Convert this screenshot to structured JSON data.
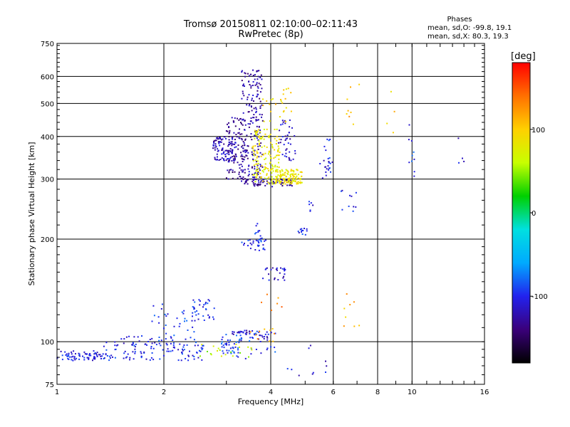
{
  "header": {
    "title_line1": "Tromsø 20150811 02:10:00–02:11:43",
    "title_line2": "RwPretec (8p)"
  },
  "phase_info": {
    "heading": "Phases",
    "line_o": "mean, sd,O: -99.8, 19.1",
    "line_x": "mean, sd,X: 80.3, 19.3"
  },
  "colors": {
    "colormap": [
      "#000000",
      "#3a007a",
      "#2222ee",
      "#00aaff",
      "#00e0e0",
      "#00d000",
      "#c8ff00",
      "#ffd000",
      "#ff7000",
      "#ff0000"
    ]
  },
  "chart_data": {
    "type": "scatter",
    "title": "Tromsø 20150811 02:10:00–02:11:43",
    "subtitle": "RwPretec (8p)",
    "xlabel": "Frequency [MHz]",
    "ylabel": "Stationary phase Virtual Height [km]",
    "x_scale": "log",
    "y_scale": "log",
    "xlim": [
      1,
      16
    ],
    "ylim": [
      75,
      750
    ],
    "x_ticks": [
      1,
      2,
      4,
      6,
      8,
      10,
      16
    ],
    "x_tick_labels": [
      "1",
      "2",
      "4",
      "6",
      "8",
      "10",
      "16"
    ],
    "y_ticks": [
      75,
      100,
      200,
      300,
      400,
      500,
      600,
      750
    ],
    "y_tick_labels": [
      "75",
      "100",
      "200",
      "300",
      "400",
      "500",
      "600",
      "750"
    ],
    "grid": true,
    "colorbar": {
      "label": "[deg]",
      "range": [
        -180,
        180
      ],
      "ticks": [
        100,
        0,
        -100
      ],
      "tick_labels": [
        "100",
        "0",
        "-100"
      ]
    },
    "series": [
      {
        "name": "O",
        "clusters": [
          {
            "f": [
              1.0,
              1.35
            ],
            "h": [
              88,
              94
            ],
            "phase": -105,
            "n": 70
          },
          {
            "f": [
              1.35,
              2.6
            ],
            "h": [
              88,
              100
            ],
            "phase": -100,
            "n": 110
          },
          {
            "f": [
              1.45,
              2.1
            ],
            "h": [
              98,
              104
            ],
            "phase": -110,
            "n": 20
          },
          {
            "f": [
              1.8,
              2.5
            ],
            "h": [
              100,
              130
            ],
            "phase": -95,
            "n": 40
          },
          {
            "f": [
              2.4,
              2.8
            ],
            "h": [
              115,
              135
            ],
            "phase": -95,
            "n": 30
          },
          {
            "f": [
              2.9,
              3.3
            ],
            "h": [
              90,
              105
            ],
            "phase": -90,
            "n": 35
          },
          {
            "f": [
              3.1,
              3.5
            ],
            "h": [
              105,
              108
            ],
            "phase": -115,
            "n": 20
          },
          {
            "f": [
              3.45,
              3.95
            ],
            "h": [
              100,
              108
            ],
            "phase": -110,
            "n": 20
          },
          {
            "f": [
              3.0,
              4.2
            ],
            "h": [
              88,
              108
            ],
            "phase": -95,
            "n": 30
          },
          {
            "f": [
              2.75,
              3.2
            ],
            "h": [
              340,
              400
            ],
            "phase": -120,
            "n": 110
          },
          {
            "f": [
              3.0,
              3.4
            ],
            "h": [
              300,
              460
            ],
            "phase": -130,
            "n": 90
          },
          {
            "f": [
              3.3,
              3.8
            ],
            "h": [
              300,
              630
            ],
            "phase": -125,
            "n": 200
          },
          {
            "f": [
              3.3,
              4.6
            ],
            "h": [
              285,
              300
            ],
            "phase": -130,
            "n": 80
          },
          {
            "f": [
              3.3,
              3.9
            ],
            "h": [
              185,
              200
            ],
            "phase": -100,
            "n": 30
          },
          {
            "f": [
              3.6,
              3.85
            ],
            "h": [
              200,
              225
            ],
            "phase": -100,
            "n": 10
          },
          {
            "f": [
              3.8,
              4.4
            ],
            "h": [
              150,
              165
            ],
            "phase": -110,
            "n": 25
          },
          {
            "f": [
              4.2,
              4.7
            ],
            "h": [
              340,
              450
            ],
            "phase": -115,
            "n": 40
          },
          {
            "f": [
              4.75,
              5.1
            ],
            "h": [
              205,
              215
            ],
            "phase": -100,
            "n": 12
          },
          {
            "f": [
              5.1,
              5.3
            ],
            "h": [
              240,
              260
            ],
            "phase": -105,
            "n": 6
          },
          {
            "f": [
              5.6,
              5.9
            ],
            "h": [
              320,
              350
            ],
            "phase": -110,
            "n": 10
          },
          {
            "f": [
              5.5,
              6.0
            ],
            "h": [
              280,
              400
            ],
            "phase": -100,
            "n": 15
          },
          {
            "f": [
              6.3,
              7.0
            ],
            "h": [
              240,
              280
            ],
            "phase": -100,
            "n": 10
          },
          {
            "f": [
              9.8,
              10.2
            ],
            "h": [
              300,
              450
            ],
            "phase": -95,
            "n": 10
          },
          {
            "f": [
              13.5,
              14.0
            ],
            "h": [
              320,
              420
            ],
            "phase": -110,
            "n": 4
          },
          {
            "f": [
              4.2,
              6.2
            ],
            "h": [
              78,
              98
            ],
            "phase": -110,
            "n": 10
          }
        ]
      },
      {
        "name": "X",
        "clusters": [
          {
            "f": [
              3.55,
              4.25
            ],
            "h": [
              290,
              420
            ],
            "phase": 80,
            "n": 150
          },
          {
            "f": [
              4.1,
              4.9
            ],
            "h": [
              290,
              320
            ],
            "phase": 85,
            "n": 120
          },
          {
            "f": [
              3.8,
              4.6
            ],
            "h": [
              440,
              560
            ],
            "phase": 95,
            "n": 25
          },
          {
            "f": [
              2.4,
              3.6
            ],
            "h": [
              90,
              100
            ],
            "phase": 60,
            "n": 20
          },
          {
            "f": [
              3.5,
              4.1
            ],
            "h": [
              100,
              110
            ],
            "phase": 120,
            "n": 10
          },
          {
            "f": [
              6.2,
              7.2
            ],
            "h": [
              110,
              150
            ],
            "phase": 110,
            "n": 8
          },
          {
            "f": [
              6.5,
              7.2
            ],
            "h": [
              420,
              650
            ],
            "phase": 110,
            "n": 8
          },
          {
            "f": [
              3.7,
              4.3
            ],
            "h": [
              120,
              140
            ],
            "phase": 130,
            "n": 6
          },
          {
            "f": [
              8.5,
              9.0
            ],
            "h": [
              400,
              600
            ],
            "phase": 100,
            "n": 4
          }
        ]
      }
    ]
  }
}
